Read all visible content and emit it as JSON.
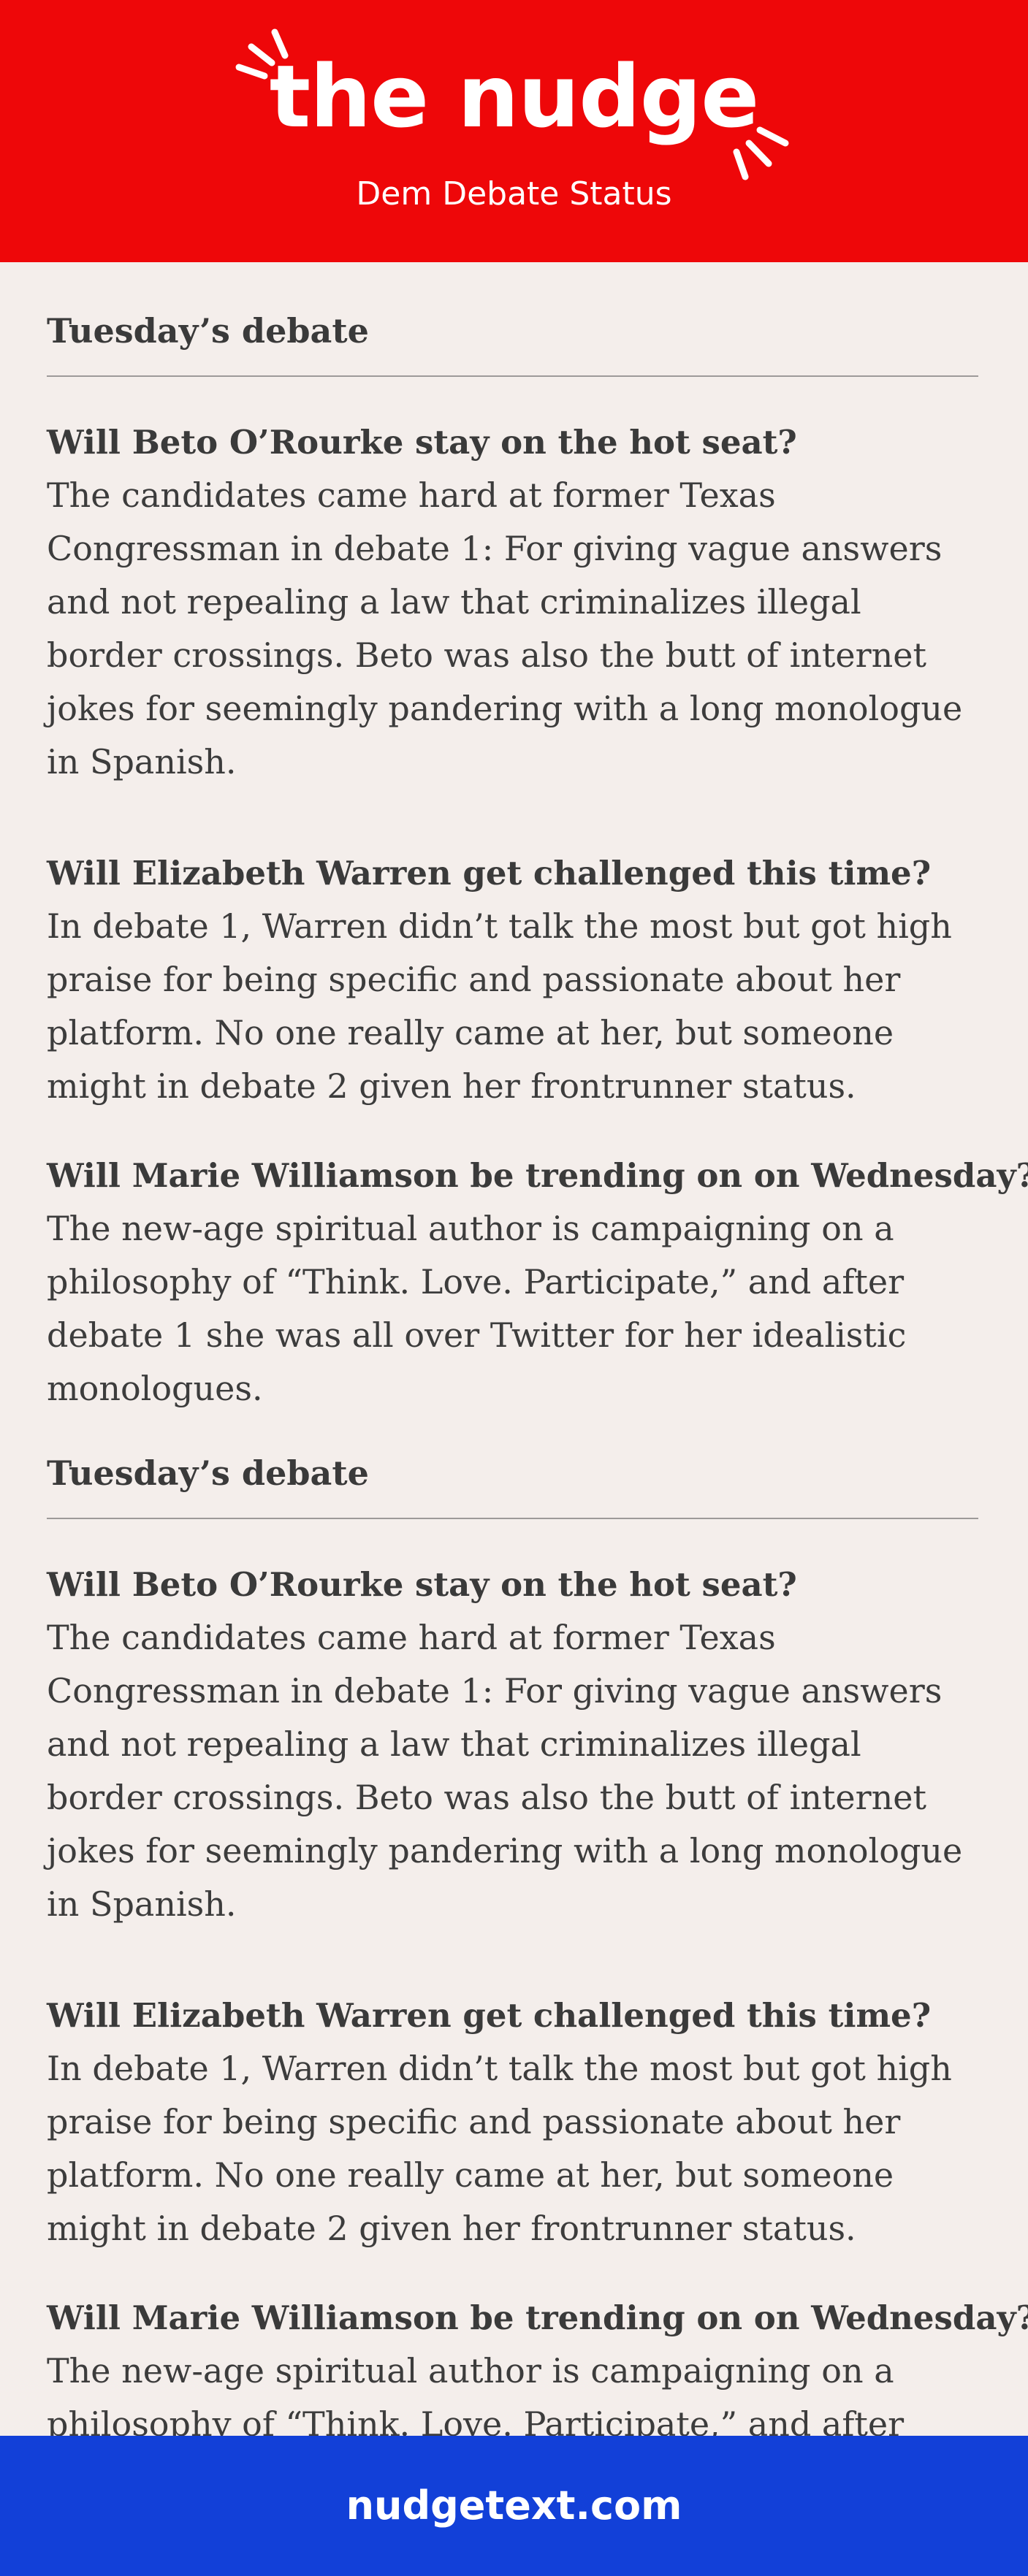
{
  "header": {
    "brand": "the nudge",
    "subtitle": "Dem Debate Status"
  },
  "sections": [
    {
      "title": "Tuesday’s debate",
      "items": [
        {
          "question": "Will Beto O’Rourke stay on the hot seat?",
          "body": "The candidates came hard at former Texas Congressman in debate 1: For giving vague answers and not repealing a law that criminalizes illegal border crossings. Beto was also the butt of internet jokes for seemingly pandering with a long monologue in Spanish."
        },
        {
          "question": "Will Elizabeth Warren get challenged this time?",
          "body": "In debate 1, Warren didn’t talk the most but got high praise for being specific and passionate about her platform. No one really came at her, but someone might in debate 2 given her frontrunner status."
        },
        {
          "question": "Will Marie Williamson be trending on on Wednesday?",
          "body": "The new-age spiritual author is campaigning on a philosophy of “Think. Love. Participate,” and after debate 1 she was all over Twitter for her idealistic monologues."
        }
      ]
    },
    {
      "title": "Tuesday’s debate",
      "items": [
        {
          "question": "Will Beto O’Rourke stay on the hot seat?",
          "body": "The candidates came hard at former Texas Congressman in debate 1: For giving vague answers and not repealing a law that criminalizes illegal border crossings. Beto was also the butt of internet jokes for seemingly pandering with a long monologue in Spanish."
        },
        {
          "question": "Will Elizabeth Warren get challenged this time?",
          "body": "In debate 1, Warren didn’t talk the most but got high praise for being specific and passionate about her platform. No one really came at her, but someone might in debate 2 given her frontrunner status."
        },
        {
          "question": "Will Marie Williamson be trending on on Wednesday?",
          "body": "The new-age spiritual author is campaigning on a philosophy of “Think. Love. Participate,” and after debate 1 she was all over Twitter for her idealistic monologues."
        }
      ]
    }
  ],
  "footer": {
    "link_text": "nudgetext.com"
  },
  "colors": {
    "header_red": "#ee0709",
    "footer_blue": "#1240d8",
    "background": "#f4eeeb",
    "text": "#333333"
  }
}
